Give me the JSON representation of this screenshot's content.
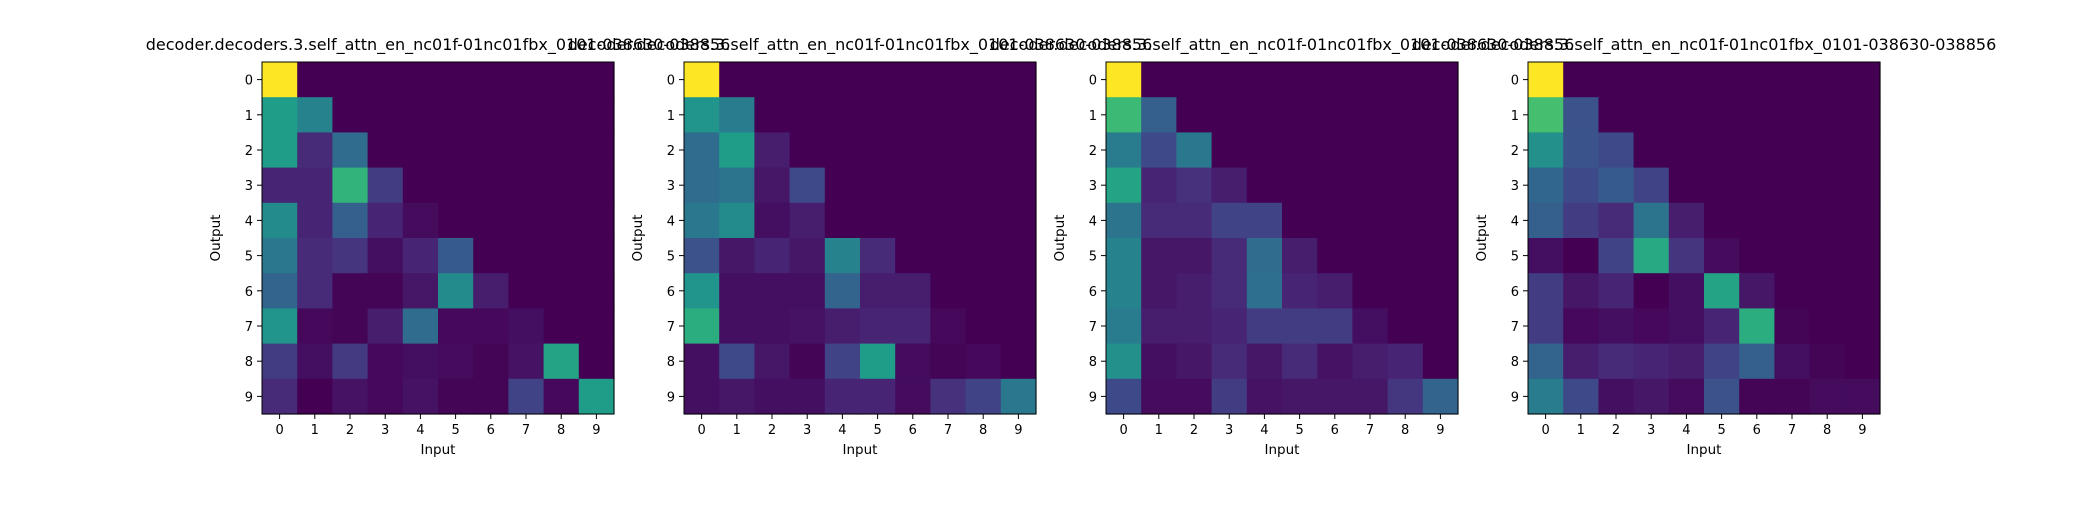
{
  "chart_data": [
    {
      "type": "heatmap",
      "title": "decoder.decoders.3.self_attn_en_nc01f-01nc01fbx_0101-038630-038856",
      "xlabel": "Input",
      "ylabel": "Output",
      "x_ticks": [
        "0",
        "1",
        "2",
        "3",
        "4",
        "5",
        "6",
        "7",
        "8",
        "9"
      ],
      "y_ticks": [
        "0",
        "1",
        "2",
        "3",
        "4",
        "5",
        "6",
        "7",
        "8",
        "9"
      ],
      "colormap": "viridis",
      "values": [
        [
          1.0,
          0,
          0,
          0,
          0,
          0,
          0,
          0,
          0,
          0
        ],
        [
          0.55,
          0.45,
          0,
          0,
          0,
          0,
          0,
          0,
          0,
          0
        ],
        [
          0.55,
          0.12,
          0.35,
          0,
          0,
          0,
          0,
          0,
          0,
          0
        ],
        [
          0.1,
          0.1,
          0.65,
          0.18,
          0,
          0,
          0,
          0,
          0,
          0
        ],
        [
          0.48,
          0.1,
          0.3,
          0.1,
          0.03,
          0,
          0,
          0,
          0,
          0
        ],
        [
          0.4,
          0.12,
          0.15,
          0.04,
          0.1,
          0.28,
          0,
          0,
          0,
          0
        ],
        [
          0.32,
          0.12,
          0.01,
          0.01,
          0.06,
          0.48,
          0.08,
          0,
          0,
          0
        ],
        [
          0.52,
          0.02,
          0.01,
          0.08,
          0.35,
          0.02,
          0.02,
          0.04,
          0,
          0
        ],
        [
          0.18,
          0.04,
          0.17,
          0.02,
          0.04,
          0.03,
          0.01,
          0.05,
          0.58,
          0
        ],
        [
          0.12,
          0.0,
          0.05,
          0.02,
          0.05,
          0.01,
          0.01,
          0.2,
          0.02,
          0.55
        ]
      ]
    },
    {
      "type": "heatmap",
      "title": "decoder.decoders.3.self_attn_en_nc01f-01nc01fbx_0101-038630-038856",
      "xlabel": "Input",
      "ylabel": "Output",
      "x_ticks": [
        "0",
        "1",
        "2",
        "3",
        "4",
        "5",
        "6",
        "7",
        "8",
        "9"
      ],
      "y_ticks": [
        "0",
        "1",
        "2",
        "3",
        "4",
        "5",
        "6",
        "7",
        "8",
        "9"
      ],
      "colormap": "viridis",
      "values": [
        [
          1.0,
          0,
          0,
          0,
          0,
          0,
          0,
          0,
          0,
          0
        ],
        [
          0.52,
          0.42,
          0,
          0,
          0,
          0,
          0,
          0,
          0,
          0
        ],
        [
          0.35,
          0.55,
          0.08,
          0,
          0,
          0,
          0,
          0,
          0,
          0
        ],
        [
          0.35,
          0.38,
          0.06,
          0.22,
          0,
          0,
          0,
          0,
          0,
          0
        ],
        [
          0.4,
          0.48,
          0.04,
          0.08,
          0,
          0,
          0,
          0,
          0,
          0
        ],
        [
          0.25,
          0.06,
          0.1,
          0.06,
          0.45,
          0.12,
          0,
          0,
          0,
          0
        ],
        [
          0.52,
          0.04,
          0.04,
          0.04,
          0.32,
          0.08,
          0.08,
          0,
          0,
          0
        ],
        [
          0.62,
          0.04,
          0.04,
          0.05,
          0.08,
          0.1,
          0.1,
          0.02,
          0,
          0
        ],
        [
          0.04,
          0.22,
          0.06,
          0.01,
          0.2,
          0.55,
          0.03,
          0.01,
          0.02,
          0
        ],
        [
          0.04,
          0.06,
          0.04,
          0.04,
          0.1,
          0.1,
          0.03,
          0.14,
          0.2,
          0.4
        ]
      ]
    },
    {
      "type": "heatmap",
      "title": "decoder.decoders.3.self_attn_en_nc01f-01nc01fbx_0101-038630-038856",
      "xlabel": "Input",
      "ylabel": "Output",
      "x_ticks": [
        "0",
        "1",
        "2",
        "3",
        "4",
        "5",
        "6",
        "7",
        "8",
        "9"
      ],
      "y_ticks": [
        "0",
        "1",
        "2",
        "3",
        "4",
        "5",
        "6",
        "7",
        "8",
        "9"
      ],
      "colormap": "viridis",
      "values": [
        [
          1.0,
          0,
          0,
          0,
          0,
          0,
          0,
          0,
          0,
          0
        ],
        [
          0.68,
          0.3,
          0,
          0,
          0,
          0,
          0,
          0,
          0,
          0
        ],
        [
          0.42,
          0.22,
          0.4,
          0,
          0,
          0,
          0,
          0,
          0,
          0
        ],
        [
          0.58,
          0.1,
          0.14,
          0.08,
          0,
          0,
          0,
          0,
          0,
          0
        ],
        [
          0.38,
          0.12,
          0.12,
          0.2,
          0.2,
          0,
          0,
          0,
          0,
          0
        ],
        [
          0.45,
          0.06,
          0.06,
          0.12,
          0.35,
          0.08,
          0,
          0,
          0,
          0
        ],
        [
          0.45,
          0.06,
          0.08,
          0.12,
          0.36,
          0.1,
          0.08,
          0,
          0,
          0
        ],
        [
          0.42,
          0.08,
          0.08,
          0.1,
          0.18,
          0.18,
          0.18,
          0.04,
          0,
          0
        ],
        [
          0.5,
          0.04,
          0.06,
          0.12,
          0.06,
          0.12,
          0.05,
          0.08,
          0.1,
          0
        ],
        [
          0.22,
          0.03,
          0.03,
          0.18,
          0.05,
          0.06,
          0.06,
          0.06,
          0.16,
          0.32
        ]
      ]
    },
    {
      "type": "heatmap",
      "title": "decoder.decoders.3.self_attn_en_nc01f-01nc01fbx_0101-038630-038856",
      "xlabel": "Input",
      "ylabel": "Output",
      "x_ticks": [
        "0",
        "1",
        "2",
        "3",
        "4",
        "5",
        "6",
        "7",
        "8",
        "9"
      ],
      "y_ticks": [
        "0",
        "1",
        "2",
        "3",
        "4",
        "5",
        "6",
        "7",
        "8",
        "9"
      ],
      "colormap": "viridis",
      "values": [
        [
          1.0,
          0,
          0,
          0,
          0,
          0,
          0,
          0,
          0,
          0
        ],
        [
          0.7,
          0.25,
          0,
          0,
          0,
          0,
          0,
          0,
          0,
          0
        ],
        [
          0.5,
          0.26,
          0.22,
          0,
          0,
          0,
          0,
          0,
          0,
          0
        ],
        [
          0.33,
          0.22,
          0.28,
          0.2,
          0,
          0,
          0,
          0,
          0,
          0
        ],
        [
          0.3,
          0.18,
          0.12,
          0.38,
          0.08,
          0,
          0,
          0,
          0,
          0
        ],
        [
          0.04,
          0.0,
          0.2,
          0.6,
          0.15,
          0.03,
          0,
          0,
          0,
          0
        ],
        [
          0.18,
          0.06,
          0.1,
          0.0,
          0.04,
          0.58,
          0.06,
          0,
          0,
          0
        ],
        [
          0.18,
          0.02,
          0.04,
          0.02,
          0.04,
          0.1,
          0.62,
          0.01,
          0,
          0
        ],
        [
          0.32,
          0.08,
          0.12,
          0.1,
          0.08,
          0.2,
          0.3,
          0.04,
          0.01,
          0
        ],
        [
          0.42,
          0.22,
          0.04,
          0.06,
          0.03,
          0.25,
          0.01,
          0.01,
          0.03,
          0.03
        ]
      ]
    }
  ]
}
